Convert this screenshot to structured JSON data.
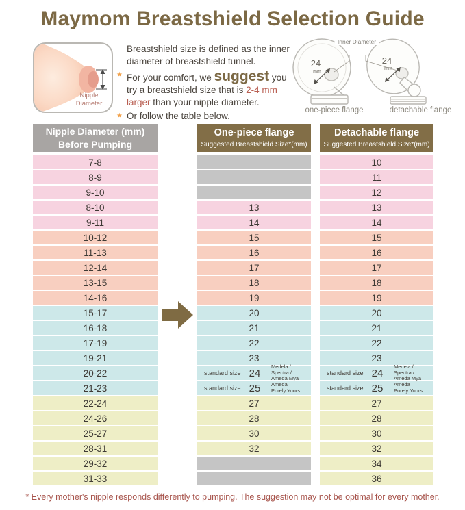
{
  "title": "Maymom Breastshield Selection Guide",
  "intro": {
    "bullet_char": "★",
    "paragraphs": [
      {
        "bullet": false,
        "segments": [
          {
            "t": "Breastshield size is defined as the inner diameter of breastshield tunnel.",
            "s": "normal"
          }
        ]
      },
      {
        "bullet": true,
        "segments": [
          {
            "t": "For your comfort, we ",
            "s": "normal"
          },
          {
            "t": "suggest",
            "s": "big"
          },
          {
            "t": " you try a breastshield size that is ",
            "s": "normal"
          },
          {
            "t": "2-4 mm larger",
            "s": "red"
          },
          {
            "t": " than your nipple diameter.",
            "s": "normal"
          }
        ]
      },
      {
        "bullet": true,
        "segments": [
          {
            "t": "Or follow the table below.",
            "s": "normal"
          }
        ]
      }
    ]
  },
  "breast_diagram": {
    "label": "Nipple Diameter"
  },
  "flange_diagram": {
    "inner_diameter_label": "Inner Diameter",
    "size_value": "24",
    "size_unit": "mm",
    "one_piece_caption": "one-piece flange",
    "detachable_caption": "detachable flange"
  },
  "chart_data": {
    "type": "table",
    "title": "Maymom Breastshield Selection Guide",
    "columns": [
      {
        "title": "Nipple Diameter (mm)",
        "subtitle": "Before Pumping"
      },
      {
        "title": "One-piece flange",
        "subtitle": "Suggested Breastshield Size*(mm)"
      },
      {
        "title": "Detachable flange",
        "subtitle": "Suggested Breastshield Size*(mm)"
      }
    ],
    "rows": [
      {
        "nipple_range": "7-8",
        "band": "pink",
        "one_piece": null,
        "detachable": "10"
      },
      {
        "nipple_range": "8-9",
        "band": "pink",
        "one_piece": null,
        "detachable": "11"
      },
      {
        "nipple_range": "9-10",
        "band": "pink",
        "one_piece": null,
        "detachable": "12"
      },
      {
        "nipple_range": "8-10",
        "band": "pink",
        "one_piece": "13",
        "detachable": "13"
      },
      {
        "nipple_range": "9-11",
        "band": "pink",
        "one_piece": "14",
        "detachable": "14"
      },
      {
        "nipple_range": "10-12",
        "band": "salmon",
        "one_piece": "15",
        "detachable": "15"
      },
      {
        "nipple_range": "11-13",
        "band": "salmon",
        "one_piece": "16",
        "detachable": "16"
      },
      {
        "nipple_range": "12-14",
        "band": "salmon",
        "one_piece": "17",
        "detachable": "17"
      },
      {
        "nipple_range": "13-15",
        "band": "salmon",
        "one_piece": "18",
        "detachable": "18"
      },
      {
        "nipple_range": "14-16",
        "band": "salmon",
        "one_piece": "19",
        "detachable": "19"
      },
      {
        "nipple_range": "15-17",
        "band": "teal",
        "one_piece": "20",
        "detachable": "20"
      },
      {
        "nipple_range": "16-18",
        "band": "teal",
        "one_piece": "21",
        "detachable": "21"
      },
      {
        "nipple_range": "17-19",
        "band": "teal",
        "one_piece": "22",
        "detachable": "22"
      },
      {
        "nipple_range": "19-21",
        "band": "teal",
        "one_piece": "23",
        "detachable": "23"
      },
      {
        "nipple_range": "20-22",
        "band": "teal",
        "one_piece": "24",
        "detachable": "24",
        "prefix": "standard size",
        "note": "Medela / Spectra /\nAmeda Mya"
      },
      {
        "nipple_range": "21-23",
        "band": "teal",
        "one_piece": "25",
        "detachable": "25",
        "prefix": "standard size",
        "note": "Ameda\nPurely Yours"
      },
      {
        "nipple_range": "22-24",
        "band": "yellow",
        "one_piece": "27",
        "detachable": "27"
      },
      {
        "nipple_range": "24-26",
        "band": "yellow",
        "one_piece": "28",
        "detachable": "28"
      },
      {
        "nipple_range": "25-27",
        "band": "yellow",
        "one_piece": "30",
        "detachable": "30"
      },
      {
        "nipple_range": "28-31",
        "band": "yellow",
        "one_piece": "32",
        "detachable": "32"
      },
      {
        "nipple_range": "29-32",
        "band": "yellow",
        "one_piece": null,
        "detachable": "34"
      },
      {
        "nipple_range": "31-33",
        "band": "yellow",
        "one_piece": null,
        "detachable": "36"
      }
    ]
  },
  "footnote": "* Every mother's nipple responds differently to pumping. The suggestion may not be optimal for every mother.",
  "colors": {
    "title-brown": "#7c6945",
    "header-brown": "#826e47",
    "header-gray": "#a8a5a3",
    "band-pink": "#f7d3e0",
    "band-salmon": "#f8cfc0",
    "band-teal": "#cde8e9",
    "band-yellow": "#eeeec6",
    "empty-gray": "#c5c5c5",
    "accent-red": "#b95f52",
    "star-orange": "#f2a24c",
    "arrow-brown": "#7f6b43",
    "footnote-red": "#a8554d"
  }
}
